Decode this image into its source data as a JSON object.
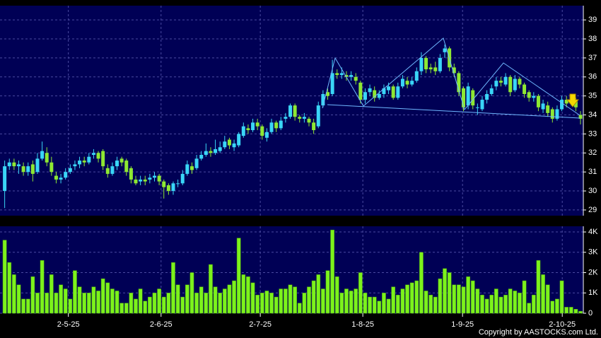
{
  "chart_data": [
    {
      "type": "candlestick",
      "open": [
        30.0,
        31.3,
        31.5,
        31.3,
        31.3,
        31.0,
        31.4,
        31.0,
        31.7,
        32.0,
        31.5,
        30.8,
        30.6,
        30.7,
        31.0,
        31.3,
        31.4,
        31.6,
        31.5,
        31.9,
        32.0,
        32.1,
        31.2,
        30.9,
        31.3,
        31.7,
        31.6,
        31.2,
        30.6,
        30.5,
        30.6,
        30.6,
        30.7,
        30.8,
        30.5,
        30.3,
        30.0,
        30.4,
        30.4,
        30.9,
        31.3,
        31.2,
        31.7,
        31.9,
        32.1,
        32.0,
        32.1,
        32.3,
        32.7,
        32.3,
        32.4,
        32.9,
        33.3,
        33.2,
        33.6,
        33.4,
        32.8,
        33.1,
        33.6,
        33.3,
        33.8,
        33.9,
        34.5,
        33.9,
        33.8,
        33.8,
        33.6,
        33.4,
        34.5,
        35.2,
        35.1,
        36.2,
        36.1,
        36.1,
        36.0,
        36.0,
        35.7,
        34.8,
        35.2,
        35.3,
        34.9,
        35.1,
        35.3,
        35.5,
        34.9,
        35.5,
        35.8,
        35.6,
        35.8,
        36.3,
        37.0,
        36.5,
        36.5,
        36.3,
        37.3,
        37.5,
        36.5,
        36.2,
        35.4,
        34.5,
        35.3,
        34.4,
        34.3,
        34.8,
        35.1,
        35.5,
        35.8,
        35.6,
        36.0,
        35.3,
        35.9,
        35.6,
        35.2,
        34.9,
        35.0,
        34.3,
        34.5,
        34.3,
        33.8,
        34.3,
        34.8,
        34.6,
        34.8,
        34.0
      ],
      "high": [
        31.6,
        31.7,
        31.7,
        31.6,
        31.5,
        31.5,
        31.6,
        32.0,
        32.6,
        32.3,
        31.8,
        31.0,
        30.9,
        31.2,
        31.4,
        31.6,
        31.8,
        31.8,
        32.0,
        32.2,
        32.1,
        32.2,
        31.4,
        31.5,
        31.8,
        31.8,
        31.7,
        31.3,
        30.8,
        30.8,
        30.8,
        30.9,
        31.0,
        30.9,
        30.6,
        30.4,
        30.5,
        30.6,
        31.1,
        31.6,
        31.5,
        31.9,
        32.1,
        32.5,
        32.3,
        32.7,
        32.6,
        32.9,
        32.8,
        32.7,
        33.1,
        33.6,
        33.5,
        33.8,
        33.8,
        33.5,
        33.3,
        33.8,
        33.7,
        33.9,
        34.1,
        34.6,
        34.6,
        34.0,
        34.1,
        33.9,
        33.8,
        34.7,
        35.3,
        35.4,
        36.9,
        36.4,
        36.5,
        36.3,
        36.3,
        36.2,
        35.8,
        35.4,
        35.6,
        35.5,
        35.3,
        35.6,
        35.7,
        35.6,
        35.7,
        36.1,
        36.0,
        36.0,
        36.5,
        37.3,
        37.1,
        36.7,
        36.8,
        37.2,
        37.7,
        37.6,
        36.7,
        36.3,
        35.5,
        35.7,
        35.4,
        34.6,
        35.0,
        35.3,
        35.6,
        36.0,
        36.0,
        36.2,
        36.1,
        36.1,
        36.0,
        35.7,
        35.3,
        35.2,
        35.1,
        34.8,
        34.7,
        34.4,
        34.5,
        35.0,
        35.0,
        35.0,
        34.9,
        34.2
      ],
      "low": [
        29.1,
        31.1,
        31.1,
        30.9,
        30.8,
        30.8,
        30.5,
        30.9,
        31.6,
        31.3,
        30.8,
        30.4,
        30.4,
        30.6,
        30.9,
        31.1,
        31.2,
        31.3,
        31.4,
        31.7,
        31.5,
        31.1,
        30.7,
        30.8,
        31.1,
        31.3,
        30.8,
        30.4,
        30.3,
        30.3,
        30.3,
        30.4,
        30.5,
        30.3,
        29.6,
        29.8,
        29.8,
        30.2,
        30.3,
        30.8,
        30.9,
        31.1,
        31.6,
        31.8,
        31.8,
        31.9,
        32.0,
        32.2,
        32.2,
        32.1,
        32.3,
        32.8,
        33.0,
        33.1,
        33.2,
        32.7,
        32.6,
        33.0,
        33.1,
        33.2,
        33.6,
        33.8,
        33.7,
        33.6,
        33.6,
        33.4,
        33.0,
        33.3,
        34.4,
        34.8,
        35.0,
        35.9,
        35.9,
        35.8,
        35.8,
        35.6,
        34.6,
        34.6,
        35.0,
        34.7,
        34.8,
        34.9,
        35.1,
        34.8,
        34.8,
        35.4,
        35.4,
        35.5,
        35.7,
        36.1,
        36.2,
        36.2,
        36.1,
        36.2,
        37.0,
        36.3,
        36.0,
        35.0,
        34.2,
        34.3,
        34.3,
        34.0,
        34.2,
        34.6,
        35.0,
        35.3,
        35.5,
        35.5,
        35.0,
        35.2,
        35.4,
        34.9,
        34.7,
        34.7,
        34.2,
        34.1,
        33.9,
        33.6,
        33.7,
        34.2,
        34.4,
        34.5,
        34.2,
        33.5
      ],
      "close": [
        31.3,
        31.5,
        31.3,
        31.4,
        31.0,
        31.3,
        30.9,
        31.7,
        32.1,
        31.5,
        31.0,
        30.6,
        30.7,
        31.0,
        31.2,
        31.4,
        31.6,
        31.5,
        31.8,
        32.0,
        31.7,
        31.3,
        30.9,
        31.3,
        31.6,
        31.5,
        31.0,
        30.6,
        30.4,
        30.6,
        30.5,
        30.7,
        30.8,
        30.5,
        30.2,
        30.0,
        30.4,
        30.4,
        30.9,
        31.4,
        31.1,
        31.7,
        31.9,
        32.1,
        32.0,
        32.2,
        32.3,
        32.6,
        32.4,
        32.5,
        33.0,
        33.4,
        33.2,
        33.6,
        33.4,
        32.9,
        33.1,
        33.6,
        33.3,
        33.7,
        33.9,
        34.5,
        33.9,
        33.8,
        33.9,
        33.6,
        33.2,
        34.5,
        35.1,
        35.0,
        36.2,
        36.1,
        36.2,
        36.0,
        36.1,
        35.8,
        34.8,
        35.2,
        35.4,
        34.9,
        35.1,
        35.4,
        35.5,
        34.9,
        35.5,
        35.9,
        35.6,
        35.8,
        36.3,
        37.0,
        36.4,
        36.4,
        36.3,
        37.0,
        37.5,
        36.5,
        36.2,
        35.2,
        34.4,
        35.5,
        34.5,
        34.4,
        34.8,
        35.1,
        35.4,
        35.8,
        35.7,
        36.0,
        35.2,
        35.9,
        35.6,
        35.1,
        34.9,
        35.0,
        34.4,
        34.6,
        34.1,
        33.8,
        34.3,
        34.8,
        34.6,
        34.8,
        34.4,
        33.8
      ],
      "up_color": "#3ad6f7",
      "down_color": "#8ee832",
      "xlim": [
        -1,
        123.6
      ],
      "ylim": [
        28.7,
        39.75
      ],
      "yticks": [
        29,
        30,
        31,
        32,
        33,
        34,
        35,
        36,
        37,
        38,
        39
      ],
      "grid": true
    },
    {
      "type": "bar",
      "values": [
        3600,
        2500,
        1900,
        1400,
        700,
        700,
        1800,
        1000,
        2600,
        1000,
        1900,
        1000,
        1400,
        1200,
        700,
        2100,
        1300,
        1000,
        1000,
        1300,
        1100,
        1700,
        1500,
        1200,
        1100,
        500,
        500,
        1000,
        700,
        1200,
        600,
        800,
        1000,
        1200,
        800,
        1000,
        2500,
        1400,
        800,
        1400,
        2000,
        1000,
        1300,
        1000,
        2400,
        1300,
        1000,
        1200,
        1400,
        1600,
        3700,
        1900,
        1800,
        1500,
        900,
        1000,
        1100,
        1000,
        800,
        1200,
        1200,
        1400,
        1300,
        500,
        1000,
        1300,
        1600,
        1900,
        1200,
        2100,
        4100,
        1800,
        1000,
        1200,
        1100,
        1200,
        2000,
        1000,
        800,
        800,
        600,
        1000,
        700,
        1300,
        900,
        1200,
        1400,
        1500,
        1600,
        3000,
        1100,
        900,
        800,
        1700,
        2200,
        2000,
        1400,
        1400,
        1300,
        1800,
        1600,
        1200,
        900,
        700,
        900,
        1200,
        800,
        900,
        1200,
        1100,
        1000,
        1600,
        500,
        900,
        2600,
        1900,
        1400,
        600,
        700,
        1600,
        300,
        300,
        200,
        100
      ],
      "color": "#7cf21c",
      "xlim": [
        -1,
        123.6
      ],
      "ylim": [
        0,
        4280
      ],
      "yticks": [
        0,
        {
          "value": 1000,
          "label": "1K"
        },
        {
          "value": 2000,
          "label": "2K"
        },
        {
          "value": 3000,
          "label": "3K"
        },
        {
          "value": 4000,
          "label": "4K"
        }
      ],
      "xticks": [
        {
          "value": 13.6,
          "label": "2-5-25"
        },
        {
          "value": 33.4,
          "label": "2-6-25"
        },
        {
          "value": 54.6,
          "label": "2-7-25"
        },
        {
          "value": 76.5,
          "label": "1-8-25"
        },
        {
          "value": 97.8,
          "label": "1-9-25"
        },
        {
          "value": 119.1,
          "label": "2-10-25"
        }
      ],
      "grid": true
    }
  ],
  "copyright": "Copyright by AASTOCKS.com Ltd."
}
